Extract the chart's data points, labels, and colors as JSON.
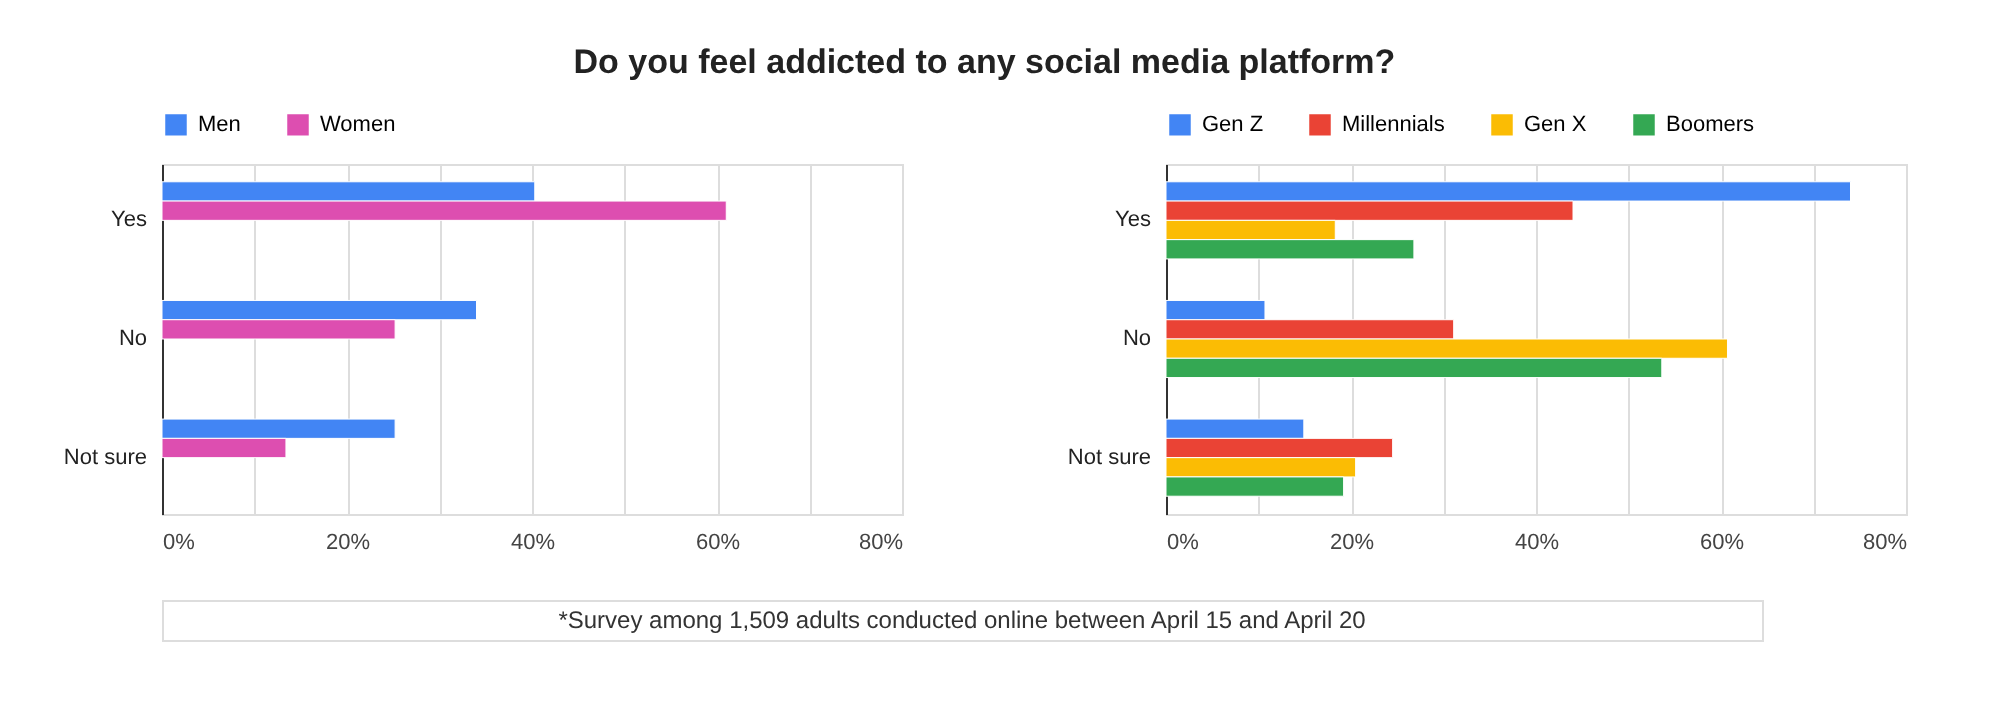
{
  "chart_data": [
    {
      "type": "bar",
      "orientation": "horizontal",
      "title": "Do you feel addicted to any social media platform?",
      "categories": [
        "Yes",
        "No",
        "Not sure"
      ],
      "xlim": [
        0,
        80
      ],
      "xticks": [
        {
          "value": 0,
          "label": "0%"
        },
        {
          "value": 10,
          "label": null
        },
        {
          "value": 20,
          "label": "20%"
        },
        {
          "value": 30,
          "label": null
        },
        {
          "value": 40,
          "label": "40%"
        },
        {
          "value": 50,
          "label": null
        },
        {
          "value": 60,
          "label": "60%"
        },
        {
          "value": 70,
          "label": null
        },
        {
          "value": 80,
          "label": "80%"
        }
      ],
      "grid": "x",
      "legend": "top left",
      "series": [
        {
          "name": "Men",
          "color": "#4285f4",
          "values": [
            40.3,
            34,
            25.2
          ]
        },
        {
          "name": "Women",
          "color": "#dd4eb0",
          "values": [
            61,
            25.2,
            13.4
          ]
        }
      ]
    },
    {
      "type": "bar",
      "orientation": "horizontal",
      "categories": [
        "Yes",
        "No",
        "Not sure"
      ],
      "xlim": [
        0,
        80
      ],
      "xticks": [
        {
          "value": 0,
          "label": "0%"
        },
        {
          "value": 10,
          "label": null
        },
        {
          "value": 20,
          "label": "20%"
        },
        {
          "value": 30,
          "label": null
        },
        {
          "value": 40,
          "label": "40%"
        },
        {
          "value": 50,
          "label": null
        },
        {
          "value": 60,
          "label": "60%"
        },
        {
          "value": 70,
          "label": null
        },
        {
          "value": 80,
          "label": "80%"
        }
      ],
      "grid": "x",
      "legend": "top left",
      "annotations": [
        "*Survey among 1,509 adults conducted online between April 15 and April 20"
      ],
      "series": [
        {
          "name": "Gen Z",
          "color": "#4285f4",
          "values": [
            74,
            10.7,
            14.9
          ]
        },
        {
          "name": "Millennials",
          "color": "#ea4335",
          "values": [
            44,
            31.1,
            24.5
          ]
        },
        {
          "name": "Gen X",
          "color": "#fbbc04",
          "values": [
            18.3,
            60.7,
            20.5
          ]
        },
        {
          "name": "Boomers",
          "color": "#34a853",
          "values": [
            26.8,
            53.6,
            19.2
          ]
        }
      ]
    }
  ]
}
